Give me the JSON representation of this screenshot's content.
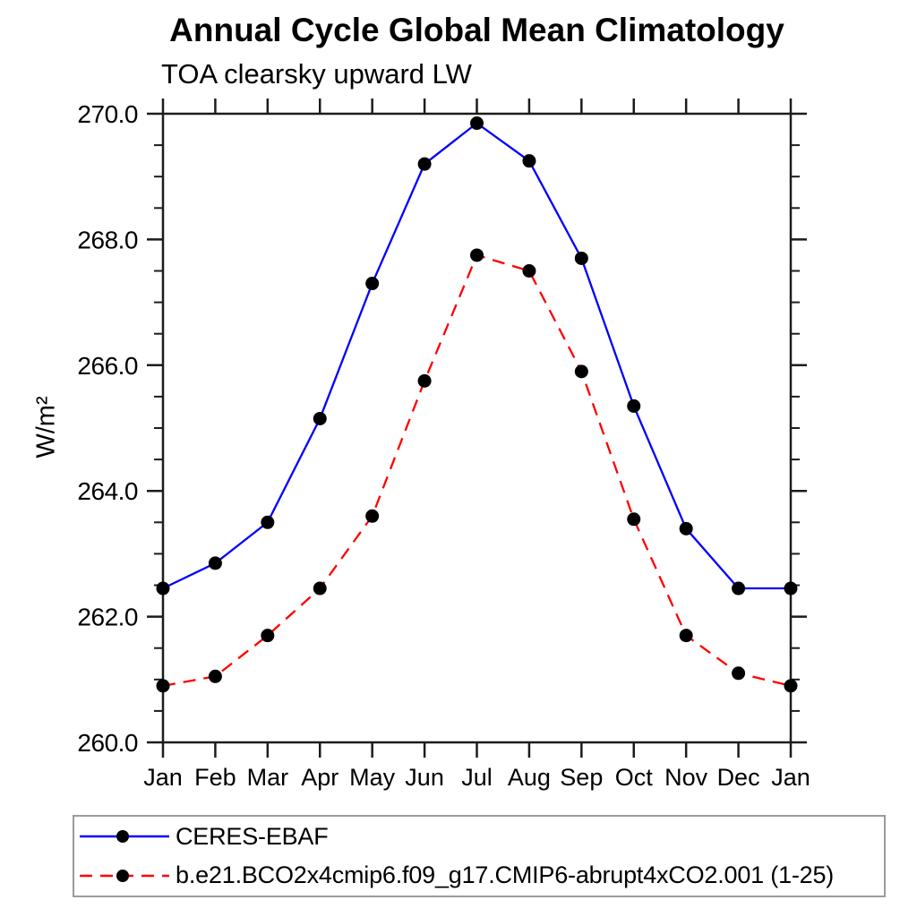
{
  "chart_data": {
    "type": "line",
    "title": "Annual Cycle Global Mean Climatology",
    "subtitle": "TOA clearsky upward LW",
    "ylabel": "W/m²",
    "xlabel": "",
    "categories": [
      "Jan",
      "Feb",
      "Mar",
      "Apr",
      "May",
      "Jun",
      "Jul",
      "Aug",
      "Sep",
      "Oct",
      "Nov",
      "Dec",
      "Jan"
    ],
    "series": [
      {
        "name": "CERES-EBAF",
        "color": "#0000ff",
        "line_style": "solid",
        "marker": "filled-black-circle",
        "values": [
          262.45,
          262.85,
          263.5,
          265.15,
          267.3,
          269.2,
          269.85,
          269.25,
          267.7,
          265.35,
          263.4,
          262.45,
          262.45
        ]
      },
      {
        "name": "b.e21.BCO2x4cmip6.f09_g17.CMIP6-abrupt4xCO2.001 (1-25)",
        "color": "#ff0000",
        "line_style": "dashed",
        "marker": "filled-black-circle",
        "values": [
          260.9,
          261.05,
          261.7,
          262.45,
          263.6,
          265.75,
          267.75,
          267.5,
          265.9,
          263.55,
          261.7,
          261.1,
          260.9
        ]
      }
    ],
    "ylim": [
      260.0,
      270.0
    ],
    "ytick_major_interval": 2.0,
    "ytick_minor_interval": 0.5,
    "ytick_labels": [
      "260.0",
      "262.0",
      "264.0",
      "266.0",
      "268.0",
      "270.0"
    ],
    "grid": false,
    "legend_position": "bottom-left-box",
    "axis_color": "#1c1c1c",
    "marker_color": "#000000"
  }
}
